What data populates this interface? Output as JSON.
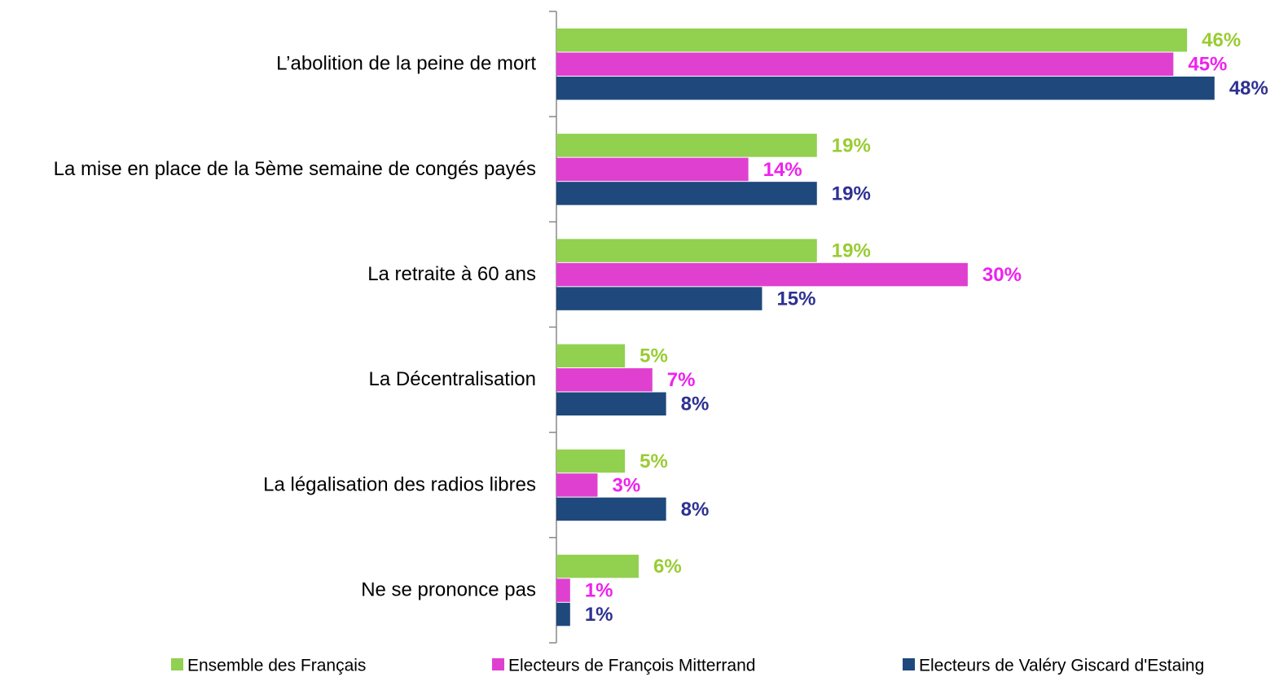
{
  "chart_data": {
    "type": "bar",
    "orientation": "horizontal",
    "categories": [
      "L’abolition de la peine de mort",
      "La mise en place de la 5ème semaine de congés payés",
      "La retraite à 60 ans",
      "La Décentralisation",
      "La légalisation des radios libres",
      "Ne se prononce pas"
    ],
    "series": [
      {
        "name": "Ensemble des Français",
        "color": "#92d050",
        "label_color": "#99cc33",
        "values": [
          46,
          19,
          19,
          5,
          5,
          6
        ],
        "value_labels": [
          "46%",
          "19%",
          "19%",
          "5%",
          "5%",
          "6%"
        ]
      },
      {
        "name": "Electeurs de François Mitterrand",
        "color": "#e040d0",
        "label_color": "#ee22ee",
        "values": [
          45,
          14,
          30,
          7,
          3,
          1
        ],
        "value_labels": [
          "45%",
          "14%",
          "30%",
          "7%",
          "3%",
          "1%"
        ]
      },
      {
        "name": "Electeurs de Valéry Giscard d'Estaing",
        "color": "#1f497d",
        "label_color": "#2e3192",
        "values": [
          48,
          19,
          15,
          8,
          8,
          1
        ],
        "value_labels": [
          "48%",
          "19%",
          "15%",
          "8%",
          "8%",
          "1%"
        ]
      }
    ],
    "xlim": [
      0,
      50
    ],
    "legend": "bottom"
  }
}
